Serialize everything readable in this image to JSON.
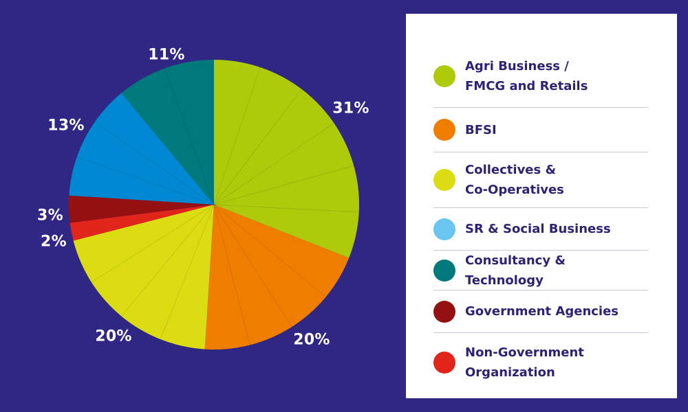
{
  "chart_data": {
    "type": "pie",
    "slices": [
      {
        "label": "Agri Business /\nFMCG and Retails",
        "value": 31,
        "value_label": "31%",
        "color": "#afca0b"
      },
      {
        "label": "BFSI",
        "value": 20,
        "value_label": "20%",
        "color": "#ef7d00"
      },
      {
        "label": "Collectives &\nCo-Operatives",
        "value": 20,
        "value_label": "20%",
        "color": "#dbdc12"
      },
      {
        "label": "Non-Government\nOrganization",
        "value": 2,
        "value_label": "2%",
        "color": "#e1251b"
      },
      {
        "label": "Government Agencies",
        "value": 3,
        "value_label": "3%",
        "color": "#951010"
      },
      {
        "label": "SR & Social Business",
        "value": 13,
        "value_label": "13%",
        "color": "#0089d2"
      },
      {
        "label": "Consultancy & Technology",
        "value": 11,
        "value_label": "11%",
        "color": "#00797d"
      }
    ],
    "legend_placement": "right"
  },
  "legend": [
    {
      "label": "Agri Business /\nFMCG and Retails",
      "color": "#afca0b"
    },
    {
      "label": "BFSI",
      "color": "#ef7d00"
    },
    {
      "label": "Collectives &\nCo-Operatives",
      "color": "#dbdc12"
    },
    {
      "label": "SR & Social Business",
      "color": "#6ac6f0"
    },
    {
      "label": "Consultancy & Technology",
      "color": "#00797d"
    },
    {
      "label": "Government Agencies",
      "color": "#951010"
    },
    {
      "label": "Non-Government\nOrganization",
      "color": "#e1251b"
    }
  ],
  "colors": {
    "background": "#302683",
    "legend_text": "#2d2372"
  }
}
